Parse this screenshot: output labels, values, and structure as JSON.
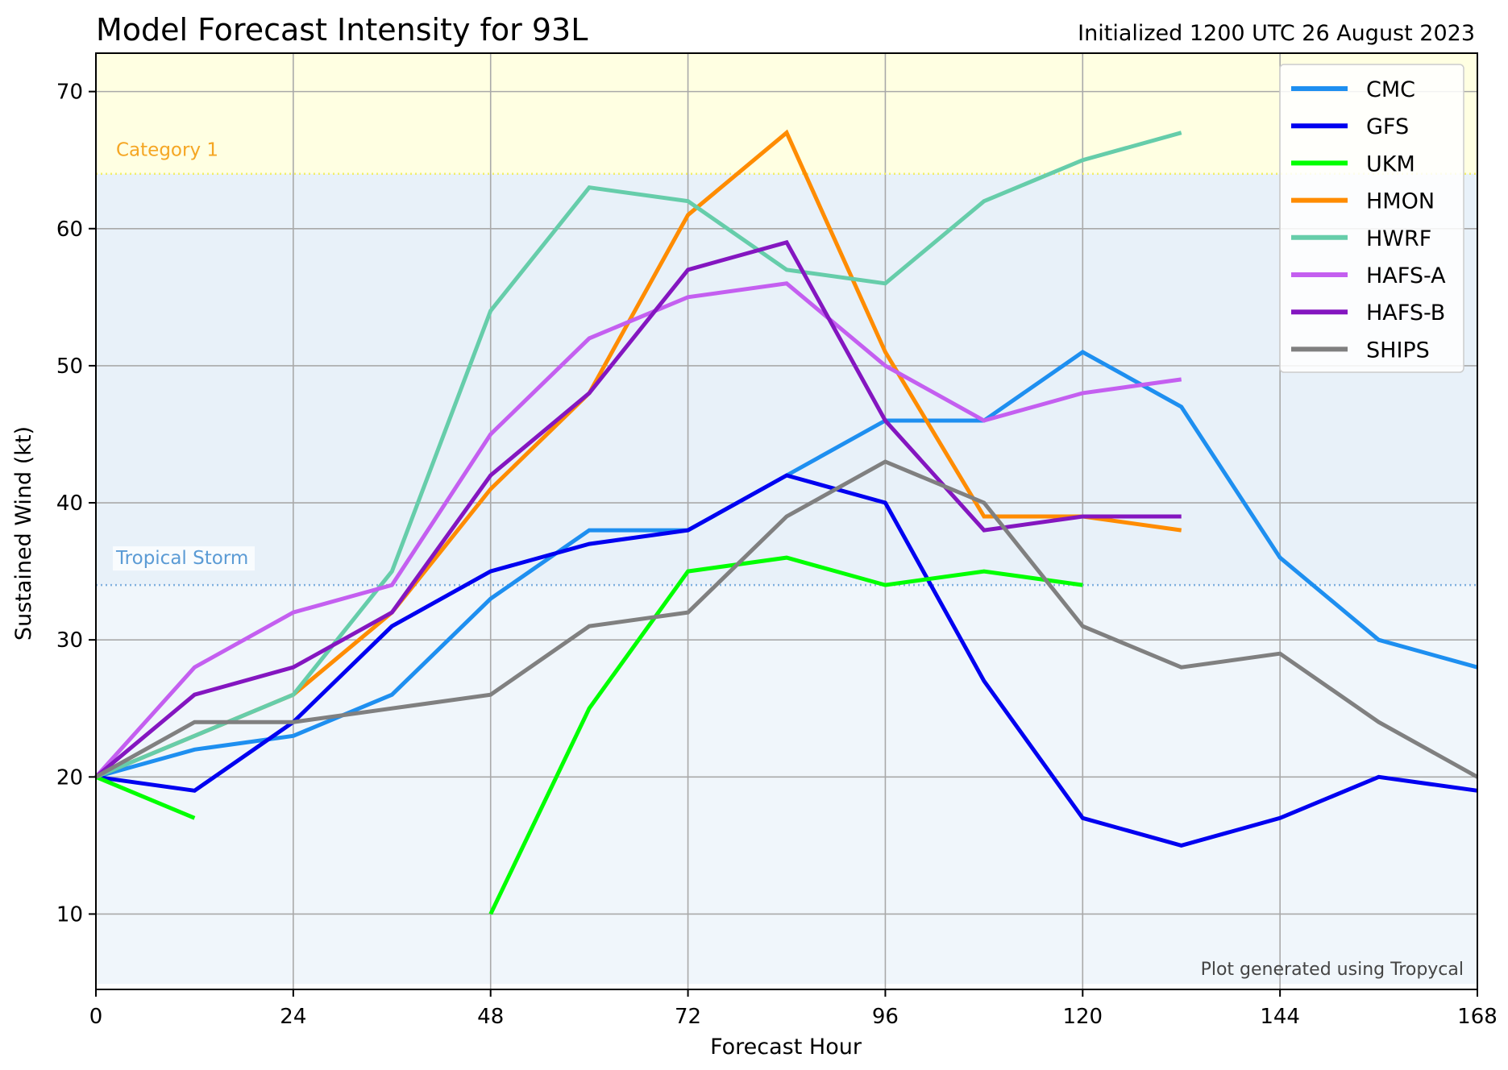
{
  "title": "Model Forecast Intensity for 93L",
  "subtitle": "Initialized 1200 UTC 26 August 2023",
  "credit": "Plot generated using Tropycal",
  "chart_data": {
    "type": "line",
    "xlabel": "Forecast Hour",
    "ylabel": "Sustained Wind (kt)",
    "xlim": [
      0,
      168
    ],
    "ylim": [
      4.5,
      72.8
    ],
    "xticks": [
      0,
      24,
      48,
      72,
      96,
      120,
      144,
      168
    ],
    "yticks": [
      10,
      20,
      30,
      40,
      50,
      60,
      70
    ],
    "grid": true,
    "legend_position": "top-right",
    "thresholds": [
      {
        "label": "Category 1",
        "value": 64,
        "color": "#f5a623",
        "line_color": "#f2ee6a",
        "band_color": "#ffffe2"
      },
      {
        "label": "Tropical Storm",
        "value": 34,
        "color": "#5b9bd5",
        "line_color": "#7fb0de",
        "band_color": "#e8f1f9"
      }
    ],
    "below_storm_color": "#f0f6fb",
    "series": [
      {
        "name": "CMC",
        "color": "#1e8ff0",
        "x": [
          0,
          12,
          24,
          36,
          48,
          60,
          72,
          84,
          96,
          108,
          120,
          132,
          144,
          156,
          168
        ],
        "y": [
          20,
          22,
          23,
          26,
          33,
          38,
          38,
          42,
          46,
          46,
          51,
          47,
          36,
          30,
          28
        ]
      },
      {
        "name": "GFS",
        "color": "#0000f0",
        "x": [
          0,
          12,
          24,
          36,
          48,
          60,
          72,
          84,
          96,
          108,
          120,
          132,
          144,
          156,
          168
        ],
        "y": [
          20,
          19,
          24,
          31,
          35,
          37,
          38,
          42,
          40,
          27,
          17,
          15,
          17,
          20,
          19
        ]
      },
      {
        "name": "UKM",
        "color": "#00ff00",
        "segments": [
          {
            "x": [
              0,
              12
            ],
            "y": [
              20,
              17
            ]
          },
          {
            "x": [
              48,
              60,
              72,
              84,
              96,
              108,
              120
            ],
            "y": [
              10,
              25,
              35,
              36,
              34,
              35,
              34
            ]
          }
        ]
      },
      {
        "name": "HMON",
        "color": "#ff8c00",
        "x": [
          0,
          12,
          24,
          36,
          48,
          60,
          72,
          84,
          96,
          108,
          120,
          132
        ],
        "y": [
          20,
          23,
          26,
          32,
          41,
          48,
          61,
          67,
          51,
          39,
          39,
          38
        ]
      },
      {
        "name": "HWRF",
        "color": "#66cdaa",
        "x": [
          0,
          12,
          24,
          36,
          48,
          60,
          72,
          84,
          96,
          108,
          120,
          132
        ],
        "y": [
          20,
          23,
          26,
          35,
          54,
          63,
          62,
          57,
          56,
          62,
          65,
          67
        ]
      },
      {
        "name": "HAFS-A",
        "color": "#c45ff0",
        "x": [
          0,
          12,
          24,
          36,
          48,
          60,
          72,
          84,
          96,
          108,
          120,
          132
        ],
        "y": [
          20,
          28,
          32,
          34,
          45,
          52,
          55,
          56,
          50,
          46,
          48,
          49
        ]
      },
      {
        "name": "HAFS-B",
        "color": "#8416c0",
        "x": [
          0,
          12,
          24,
          36,
          48,
          60,
          72,
          84,
          96,
          108,
          120,
          132
        ],
        "y": [
          20,
          26,
          28,
          32,
          42,
          48,
          57,
          59,
          46,
          38,
          39,
          39
        ]
      },
      {
        "name": "SHIPS",
        "color": "#808080",
        "x": [
          0,
          12,
          24,
          36,
          48,
          60,
          72,
          84,
          96,
          108,
          120,
          132,
          144,
          156,
          168
        ],
        "y": [
          20,
          24,
          24,
          25,
          26,
          31,
          32,
          39,
          43,
          40,
          31,
          28,
          29,
          24,
          20
        ]
      }
    ]
  }
}
